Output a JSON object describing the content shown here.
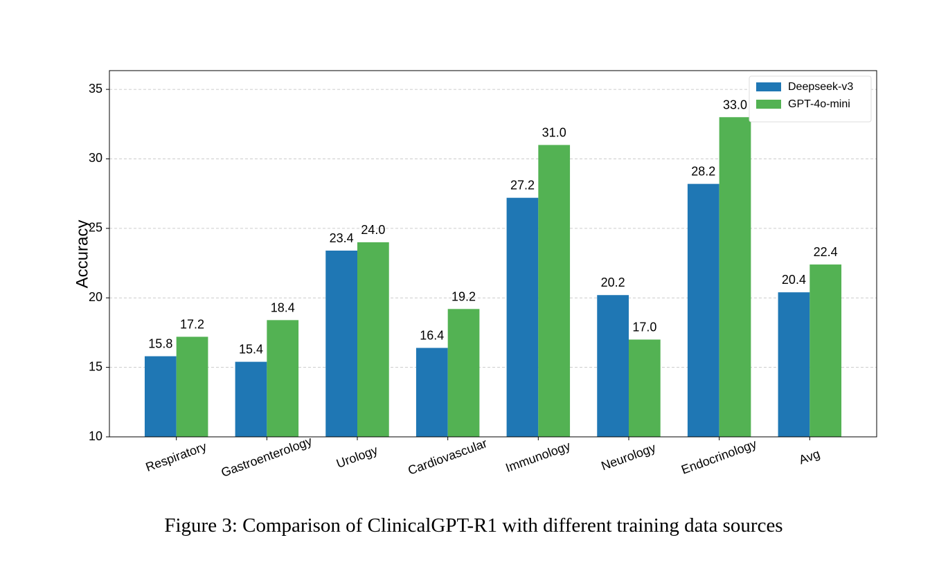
{
  "chart_data": {
    "type": "bar",
    "y_label": "Accuracy",
    "caption": "Figure 3: Comparison of ClinicalGPT-R1 with different training data sources",
    "categories": [
      "Respiratory",
      "Gastroenterology",
      "Urology",
      "Cardiovascular",
      "Immunology",
      "Neurology",
      "Endocrinology",
      "Avg"
    ],
    "series": [
      {
        "name": "Deepseek-v3",
        "color": "#1f77b4",
        "values": [
          15.8,
          15.4,
          23.4,
          16.4,
          27.2,
          20.2,
          28.2,
          20.4
        ],
        "value_labels": [
          "15.8",
          "15.4",
          "23.4",
          "16.4",
          "27.2",
          "20.2",
          "28.2",
          "20.4"
        ]
      },
      {
        "name": "GPT-4o-mini",
        "color": "#53b253",
        "values": [
          17.2,
          18.4,
          24,
          19.2,
          31,
          17,
          33,
          22.4
        ],
        "value_labels": [
          "17.2",
          "18.4",
          "24.0",
          "19.2",
          "31.0",
          "17.0",
          "33.0",
          "22.4"
        ]
      }
    ],
    "ylim": [
      10,
      36.35
    ],
    "yticks": [
      10,
      15,
      20,
      25,
      30,
      35
    ],
    "grid": true,
    "legend": "upper right"
  }
}
